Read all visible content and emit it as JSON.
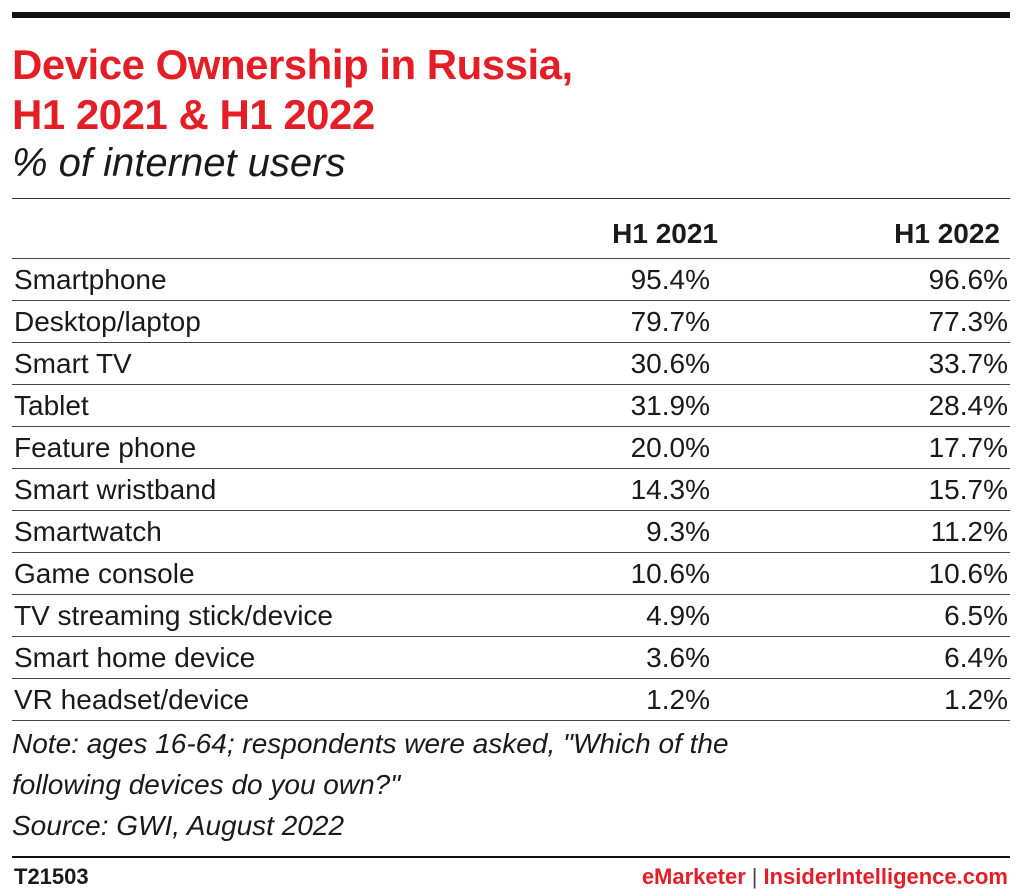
{
  "chart_data": {
    "type": "table",
    "title": "Device Ownership in Russia, H1 2021 & H1 2022",
    "title_lines": [
      "Device Ownership in Russia,",
      "H1 2021 & H1 2022"
    ],
    "subtitle": "% of internet users",
    "columns": [
      "H1 2021",
      "H1 2022"
    ],
    "rows": [
      {
        "label": "Smartphone",
        "values": [
          "95.4%",
          "96.6%"
        ]
      },
      {
        "label": "Desktop/laptop",
        "values": [
          "79.7%",
          "77.3%"
        ]
      },
      {
        "label": "Smart TV",
        "values": [
          "30.6%",
          "33.7%"
        ]
      },
      {
        "label": "Tablet",
        "values": [
          "31.9%",
          "28.4%"
        ]
      },
      {
        "label": "Feature phone",
        "values": [
          "20.0%",
          "17.7%"
        ]
      },
      {
        "label": "Smart wristband",
        "values": [
          "14.3%",
          "15.7%"
        ]
      },
      {
        "label": "Smartwatch",
        "values": [
          "9.3%",
          "11.2%"
        ]
      },
      {
        "label": "Game console",
        "values": [
          "10.6%",
          "10.6%"
        ]
      },
      {
        "label": "TV streaming stick/device",
        "values": [
          "4.9%",
          "6.5%"
        ]
      },
      {
        "label": "Smart home device",
        "values": [
          "3.6%",
          "6.4%"
        ]
      },
      {
        "label": "VR headset/device",
        "values": [
          "1.2%",
          "1.2%"
        ]
      }
    ],
    "note_lines": [
      "Note: ages 16-64; respondents were asked, \"Which of the",
      "following devices do you own?\""
    ],
    "source": "Source: GWI, August 2022"
  },
  "footer": {
    "chart_id": "T21503",
    "brand_left": "eMarketer",
    "separator": "|",
    "brand_right": "InsiderIntelligence.com"
  },
  "colors": {
    "accent": "#e41e26",
    "text": "#1a1a1a",
    "rule": "#111111"
  }
}
